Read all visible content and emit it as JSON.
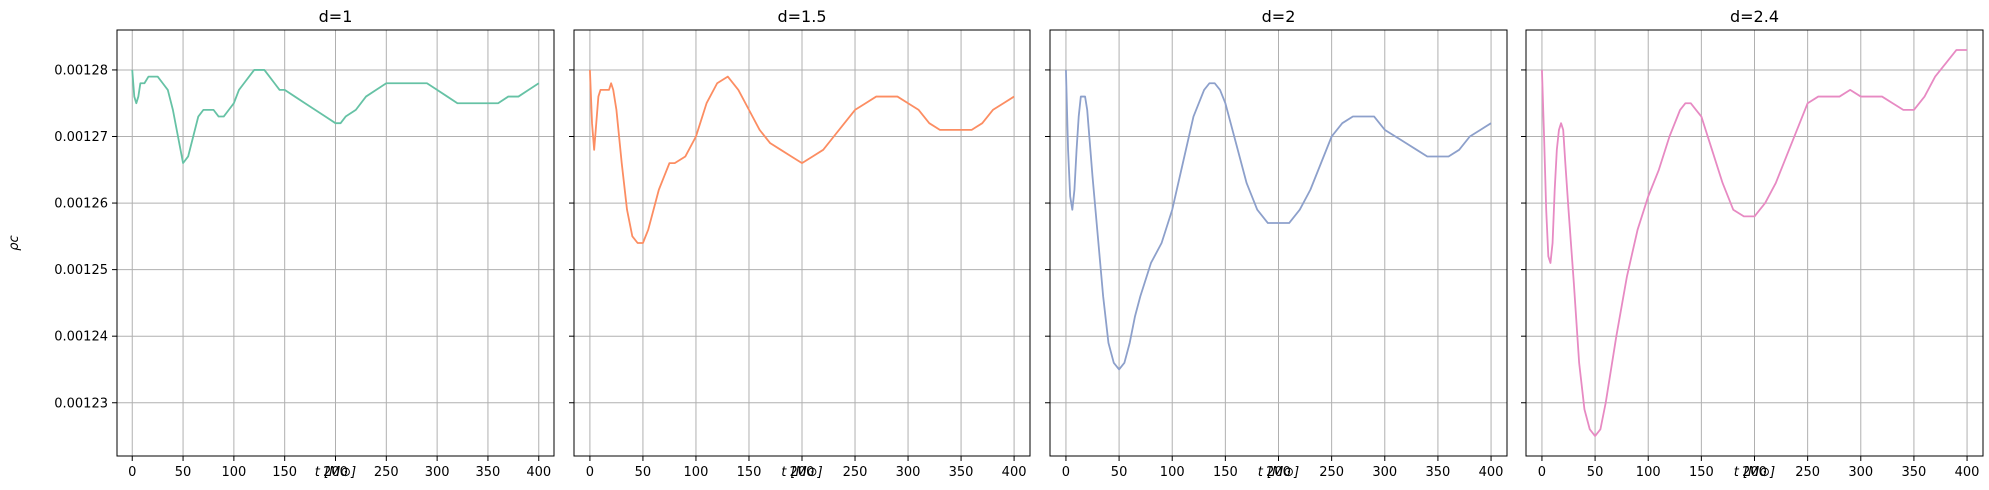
{
  "chart_data": [
    {
      "type": "line",
      "title": "d=1",
      "xlabel": "t [M⊙]",
      "ylabel": "ρc",
      "xlim": [
        -15,
        415
      ],
      "ylim": [
        0.001222,
        0.001286
      ],
      "xticks": [
        "0",
        "50",
        "100",
        "150",
        "200",
        "250",
        "300",
        "350",
        "400"
      ],
      "yticks": [
        "0.00123",
        "0.00124",
        "0.00125",
        "0.00126",
        "0.00127",
        "0.00128"
      ],
      "grid": true,
      "color": "#66c2a5",
      "x": [
        0,
        2,
        4,
        6,
        8,
        12,
        16,
        20,
        25,
        30,
        35,
        40,
        45,
        50,
        55,
        60,
        65,
        70,
        75,
        80,
        85,
        90,
        95,
        100,
        105,
        110,
        115,
        120,
        125,
        130,
        135,
        140,
        145,
        150,
        160,
        170,
        180,
        190,
        200,
        205,
        210,
        220,
        230,
        240,
        250,
        260,
        270,
        280,
        290,
        300,
        310,
        320,
        330,
        340,
        350,
        360,
        370,
        380,
        390,
        400
      ],
      "y": [
        0.00128,
        0.001276,
        0.001275,
        0.001276,
        0.001278,
        0.001278,
        0.001279,
        0.001279,
        0.001279,
        0.001278,
        0.001277,
        0.001274,
        0.00127,
        0.001266,
        0.001267,
        0.00127,
        0.001273,
        0.001274,
        0.001274,
        0.001274,
        0.001273,
        0.001273,
        0.001274,
        0.001275,
        0.001277,
        0.001278,
        0.001279,
        0.00128,
        0.00128,
        0.00128,
        0.001279,
        0.001278,
        0.001277,
        0.001277,
        0.001276,
        0.001275,
        0.001274,
        0.001273,
        0.001272,
        0.001272,
        0.001273,
        0.001274,
        0.001276,
        0.001277,
        0.001278,
        0.001278,
        0.001278,
        0.001278,
        0.001278,
        0.001277,
        0.001276,
        0.001275,
        0.001275,
        0.001275,
        0.001275,
        0.001275,
        0.001276,
        0.001276,
        0.001277,
        0.001278
      ]
    },
    {
      "type": "line",
      "title": "d=1.5",
      "xlabel": "t [M⊙]",
      "xlim": [
        -15,
        415
      ],
      "ylim": [
        0.001222,
        0.001286
      ],
      "xticks": [
        "0",
        "50",
        "100",
        "150",
        "200",
        "250",
        "300",
        "350",
        "400"
      ],
      "grid": true,
      "color": "#fc8d62",
      "x": [
        0,
        2,
        4,
        6,
        8,
        10,
        12,
        14,
        16,
        18,
        20,
        22,
        25,
        30,
        35,
        40,
        45,
        50,
        55,
        60,
        65,
        70,
        75,
        80,
        90,
        100,
        110,
        120,
        130,
        140,
        150,
        160,
        170,
        180,
        190,
        200,
        210,
        220,
        230,
        240,
        250,
        260,
        270,
        280,
        290,
        300,
        310,
        320,
        330,
        340,
        350,
        360,
        370,
        380,
        390,
        400
      ],
      "y": [
        0.00128,
        0.001272,
        0.001268,
        0.001272,
        0.001276,
        0.001277,
        0.001277,
        0.001277,
        0.001277,
        0.001277,
        0.001278,
        0.001277,
        0.001274,
        0.001266,
        0.001259,
        0.001255,
        0.001254,
        0.001254,
        0.001256,
        0.001259,
        0.001262,
        0.001264,
        0.001266,
        0.001266,
        0.001267,
        0.00127,
        0.001275,
        0.001278,
        0.001279,
        0.001277,
        0.001274,
        0.001271,
        0.001269,
        0.001268,
        0.001267,
        0.001266,
        0.001267,
        0.001268,
        0.00127,
        0.001272,
        0.001274,
        0.001275,
        0.001276,
        0.001276,
        0.001276,
        0.001275,
        0.001274,
        0.001272,
        0.001271,
        0.001271,
        0.001271,
        0.001271,
        0.001272,
        0.001274,
        0.001275,
        0.001276
      ]
    },
    {
      "type": "line",
      "title": "d=2",
      "xlabel": "t [M⊙]",
      "xlim": [
        -15,
        415
      ],
      "ylim": [
        0.001222,
        0.001286
      ],
      "xticks": [
        "0",
        "50",
        "100",
        "150",
        "200",
        "250",
        "300",
        "350",
        "400"
      ],
      "grid": true,
      "color": "#8da0cb",
      "x": [
        0,
        2,
        4,
        6,
        8,
        10,
        12,
        14,
        16,
        18,
        20,
        22,
        25,
        30,
        35,
        40,
        45,
        50,
        55,
        60,
        65,
        70,
        80,
        90,
        100,
        110,
        120,
        130,
        135,
        140,
        145,
        150,
        160,
        170,
        180,
        190,
        200,
        205,
        210,
        220,
        230,
        240,
        250,
        260,
        270,
        280,
        290,
        300,
        310,
        320,
        330,
        340,
        350,
        360,
        370,
        380,
        390,
        400
      ],
      "y": [
        0.00128,
        0.001268,
        0.001261,
        0.001259,
        0.001262,
        0.001268,
        0.001273,
        0.001276,
        0.001276,
        0.001276,
        0.001274,
        0.00127,
        0.001264,
        0.001255,
        0.001246,
        0.001239,
        0.001236,
        0.001235,
        0.001236,
        0.001239,
        0.001243,
        0.001246,
        0.001251,
        0.001254,
        0.001259,
        0.001266,
        0.001273,
        0.001277,
        0.001278,
        0.001278,
        0.001277,
        0.001275,
        0.001269,
        0.001263,
        0.001259,
        0.001257,
        0.001257,
        0.001257,
        0.001257,
        0.001259,
        0.001262,
        0.001266,
        0.00127,
        0.001272,
        0.001273,
        0.001273,
        0.001273,
        0.001271,
        0.00127,
        0.001269,
        0.001268,
        0.001267,
        0.001267,
        0.001267,
        0.001268,
        0.00127,
        0.001271,
        0.001272
      ]
    },
    {
      "type": "line",
      "title": "d=2.4",
      "xlabel": "t [M⊙]",
      "xlim": [
        -15,
        415
      ],
      "ylim": [
        0.001222,
        0.001286
      ],
      "xticks": [
        "0",
        "50",
        "100",
        "150",
        "200",
        "250",
        "300",
        "350",
        "400"
      ],
      "grid": true,
      "color": "#e78ac3",
      "x": [
        0,
        2,
        4,
        6,
        8,
        10,
        12,
        14,
        16,
        18,
        20,
        22,
        25,
        30,
        35,
        40,
        45,
        50,
        55,
        60,
        65,
        70,
        80,
        90,
        100,
        110,
        120,
        130,
        135,
        140,
        145,
        150,
        160,
        170,
        180,
        190,
        195,
        200,
        205,
        210,
        220,
        230,
        240,
        250,
        260,
        270,
        280,
        290,
        300,
        310,
        320,
        330,
        340,
        345,
        350,
        360,
        370,
        380,
        390,
        400
      ],
      "y": [
        0.00128,
        0.00127,
        0.001259,
        0.001252,
        0.001251,
        0.001254,
        0.001262,
        0.001268,
        0.001271,
        0.001272,
        0.001271,
        0.001266,
        0.001259,
        0.001248,
        0.001236,
        0.001229,
        0.001226,
        0.001225,
        0.001226,
        0.00123,
        0.001235,
        0.00124,
        0.001249,
        0.001256,
        0.001261,
        0.001265,
        0.00127,
        0.001274,
        0.001275,
        0.001275,
        0.001274,
        0.001273,
        0.001268,
        0.001263,
        0.001259,
        0.001258,
        0.001258,
        0.001258,
        0.001259,
        0.00126,
        0.001263,
        0.001267,
        0.001271,
        0.001275,
        0.001276,
        0.001276,
        0.001276,
        0.001277,
        0.001276,
        0.001276,
        0.001276,
        0.001275,
        0.001274,
        0.001274,
        0.001274,
        0.001276,
        0.001279,
        0.001281,
        0.001283,
        0.001283
      ]
    }
  ]
}
